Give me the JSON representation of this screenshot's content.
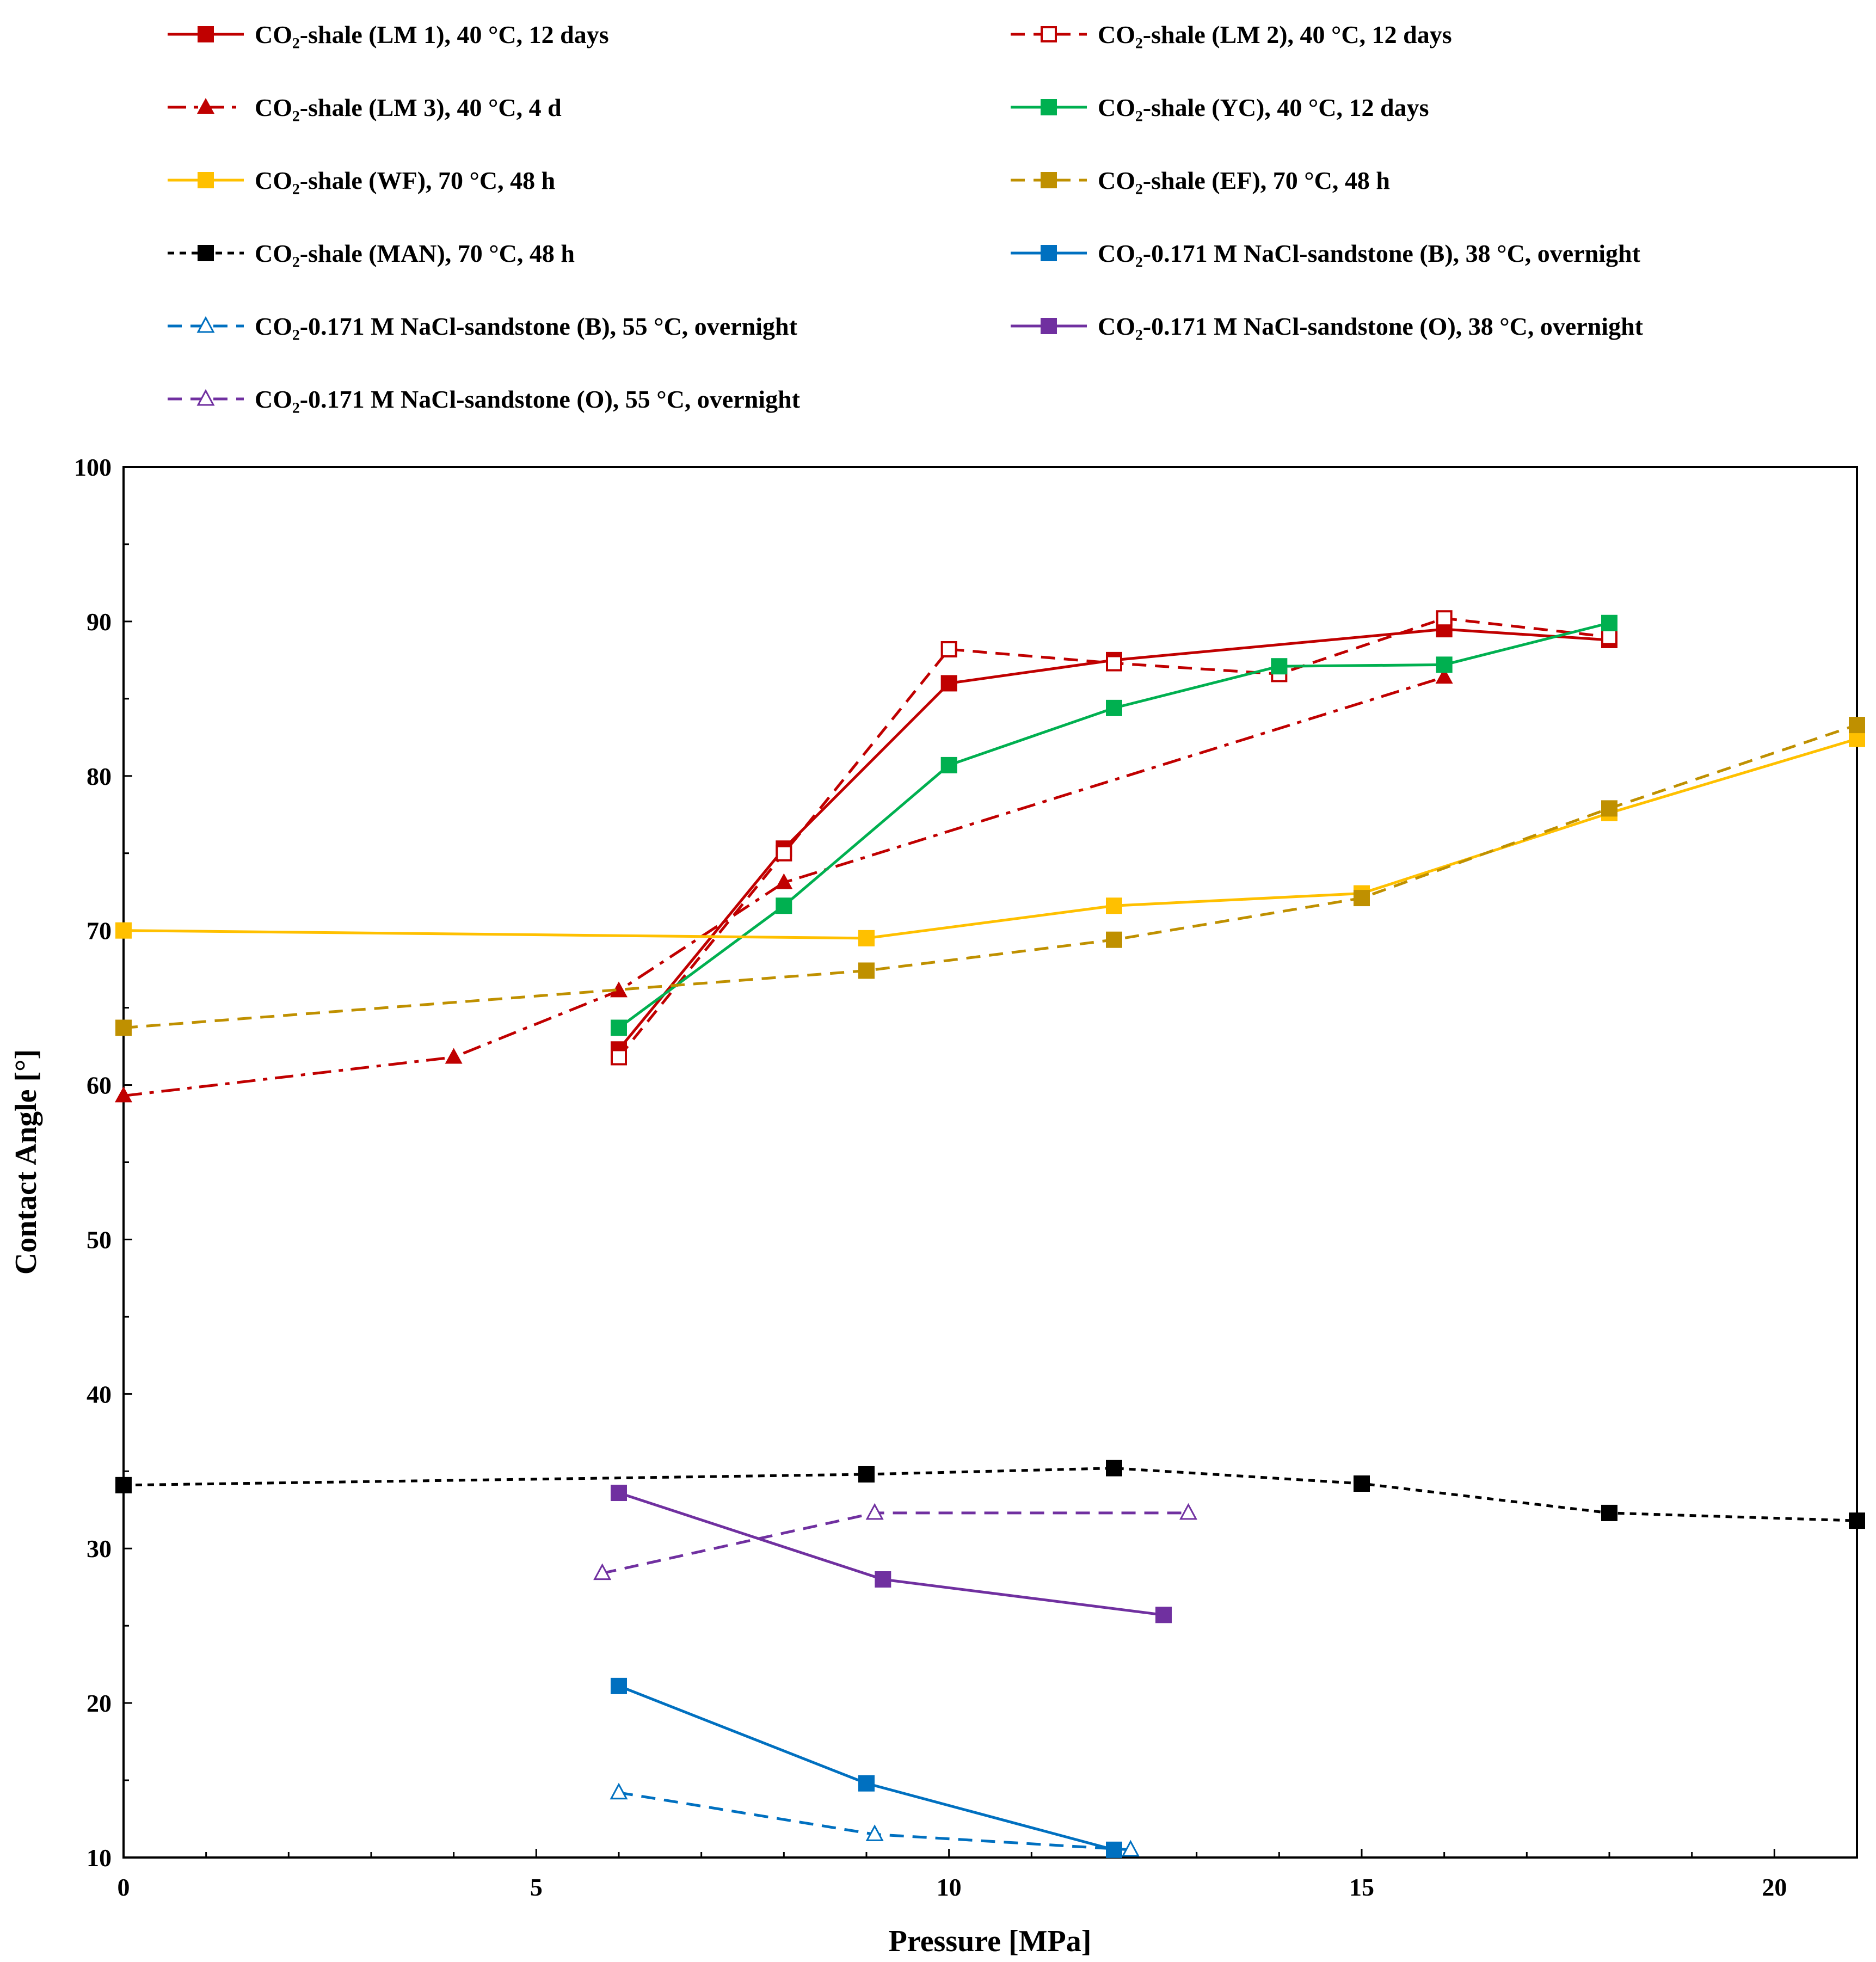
{
  "chart_data": {
    "type": "line",
    "title": "",
    "xlabel": "Pressure [MPa]",
    "ylabel": "Contact Angle [°]",
    "xlim": [
      0,
      21
    ],
    "ylim": [
      10,
      100
    ],
    "xticks": [
      0,
      5,
      10,
      15,
      20
    ],
    "yticks": [
      10,
      20,
      30,
      40,
      50,
      60,
      70,
      80,
      90,
      100
    ],
    "grid": false,
    "legend_position": "top",
    "series": [
      {
        "name": "CO₂-shale (LM 1), 40 °C, 12 days",
        "color": "#C00000",
        "dash": "solid",
        "marker": "square-filled",
        "x": [
          6,
          8,
          10,
          12,
          16,
          18
        ],
        "y": [
          62.3,
          75.3,
          86.0,
          87.5,
          89.5,
          88.8
        ]
      },
      {
        "name": "CO₂-shale (LM 2), 40 °C, 12 days",
        "color": "#C00000",
        "dash": "dashed",
        "marker": "square-open",
        "x": [
          6,
          8,
          10,
          12,
          14,
          16,
          18
        ],
        "y": [
          61.8,
          75.0,
          88.2,
          87.3,
          86.6,
          90.2,
          89.0
        ]
      },
      {
        "name": "CO₂-shale (LM 3), 40 °C, 4 d",
        "color": "#C00000",
        "dash": "dashdot",
        "marker": "triangle-filled",
        "x": [
          0,
          4,
          6,
          8,
          16
        ],
        "y": [
          59.3,
          61.8,
          66.1,
          73.1,
          86.4
        ]
      },
      {
        "name": "CO₂-shale (YC), 40 °C, 12 days",
        "color": "#00B050",
        "dash": "solid",
        "marker": "square-filled",
        "x": [
          6,
          8,
          10,
          12,
          14,
          16,
          18
        ],
        "y": [
          63.7,
          71.6,
          80.7,
          84.4,
          87.1,
          87.2,
          89.9
        ]
      },
      {
        "name": "CO₂-shale (WF), 70 °C, 48 h",
        "color": "#FFC000",
        "dash": "solid",
        "marker": "square-filled",
        "x": [
          0,
          9,
          12,
          15,
          18,
          21
        ],
        "y": [
          70.0,
          69.5,
          71.6,
          72.4,
          77.6,
          82.4
        ]
      },
      {
        "name": "CO₂-shale (EF), 70 °C, 48 h",
        "color": "#BF9000",
        "dash": "dashed",
        "marker": "square-filled",
        "x": [
          0,
          9,
          12,
          15,
          18,
          21
        ],
        "y": [
          63.7,
          67.4,
          69.4,
          72.1,
          77.9,
          83.3
        ]
      },
      {
        "name": "CO₂-shale (MAN), 70 °C, 48 h",
        "color": "#000000",
        "dash": "dotted",
        "marker": "square-filled",
        "x": [
          0,
          9,
          12,
          15,
          18,
          21
        ],
        "y": [
          34.1,
          34.8,
          35.2,
          34.2,
          32.3,
          31.8
        ]
      },
      {
        "name": "CO₂-0.171 M NaCl-sandstone (B), 38 °C, overnight",
        "color": "#0070C0",
        "dash": "solid",
        "marker": "square-filled",
        "x": [
          6,
          9,
          12
        ],
        "y": [
          21.1,
          14.8,
          10.5
        ]
      },
      {
        "name": "CO₂-0.171 M NaCl-sandstone (B), 55 °C, overnight",
        "color": "#0070C0",
        "dash": "dashed",
        "marker": "triangle-open",
        "x": [
          6,
          9.1,
          12.2
        ],
        "y": [
          14.2,
          11.5,
          10.5
        ]
      },
      {
        "name": "CO₂-0.171 M NaCl-sandstone (O), 38 °C, overnight",
        "color": "#7030A0",
        "dash": "solid",
        "marker": "square-filled",
        "x": [
          6,
          9.2,
          12.6
        ],
        "y": [
          33.6,
          28.0,
          25.7
        ]
      },
      {
        "name": "CO₂-0.171 M NaCl-sandstone (O), 55 °C, overnight",
        "color": "#7030A0",
        "dash": "dashed",
        "marker": "triangle-open",
        "x": [
          5.8,
          9.1,
          12.9
        ],
        "y": [
          28.4,
          32.3,
          32.3
        ]
      }
    ]
  }
}
